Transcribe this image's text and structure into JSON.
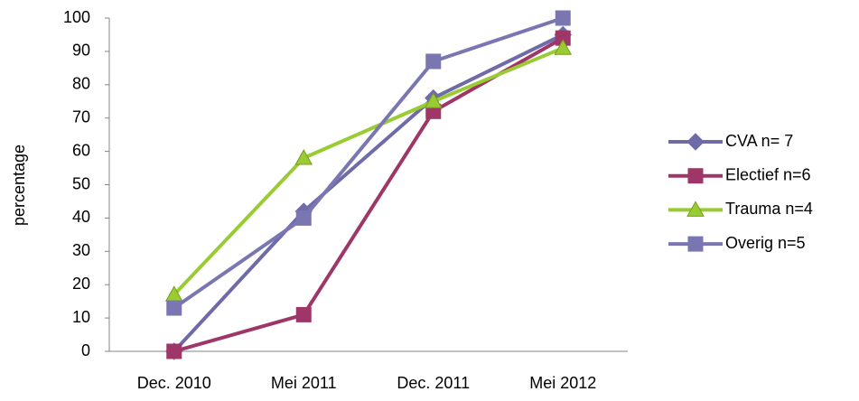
{
  "chart_data": {
    "type": "line",
    "y_label": "percentage",
    "categories": [
      "Dec. 2010",
      "Mei 2011",
      "Dec. 2011",
      "Mei 2012"
    ],
    "series": [
      {
        "name": "CVA n= 7",
        "color": "#6f6aa8",
        "marker": "diamond",
        "values": [
          0,
          42,
          76,
          95
        ]
      },
      {
        "name": "Electief n=6",
        "color": "#9e3668",
        "marker": "square",
        "values": [
          0,
          11,
          72,
          94
        ]
      },
      {
        "name": "Trauma n=4",
        "color": "#99cc33",
        "marker": "triangle",
        "values": [
          17,
          58,
          75,
          91
        ]
      },
      {
        "name": "Overig n=5",
        "color": "#7a76b2",
        "marker": "square",
        "values": [
          13,
          40,
          87,
          100
        ]
      }
    ],
    "ylim": [
      0,
      100
    ],
    "yticks": [
      0,
      10,
      20,
      30,
      40,
      50,
      60,
      70,
      80,
      90,
      100
    ],
    "grid": false,
    "legend": "right"
  }
}
